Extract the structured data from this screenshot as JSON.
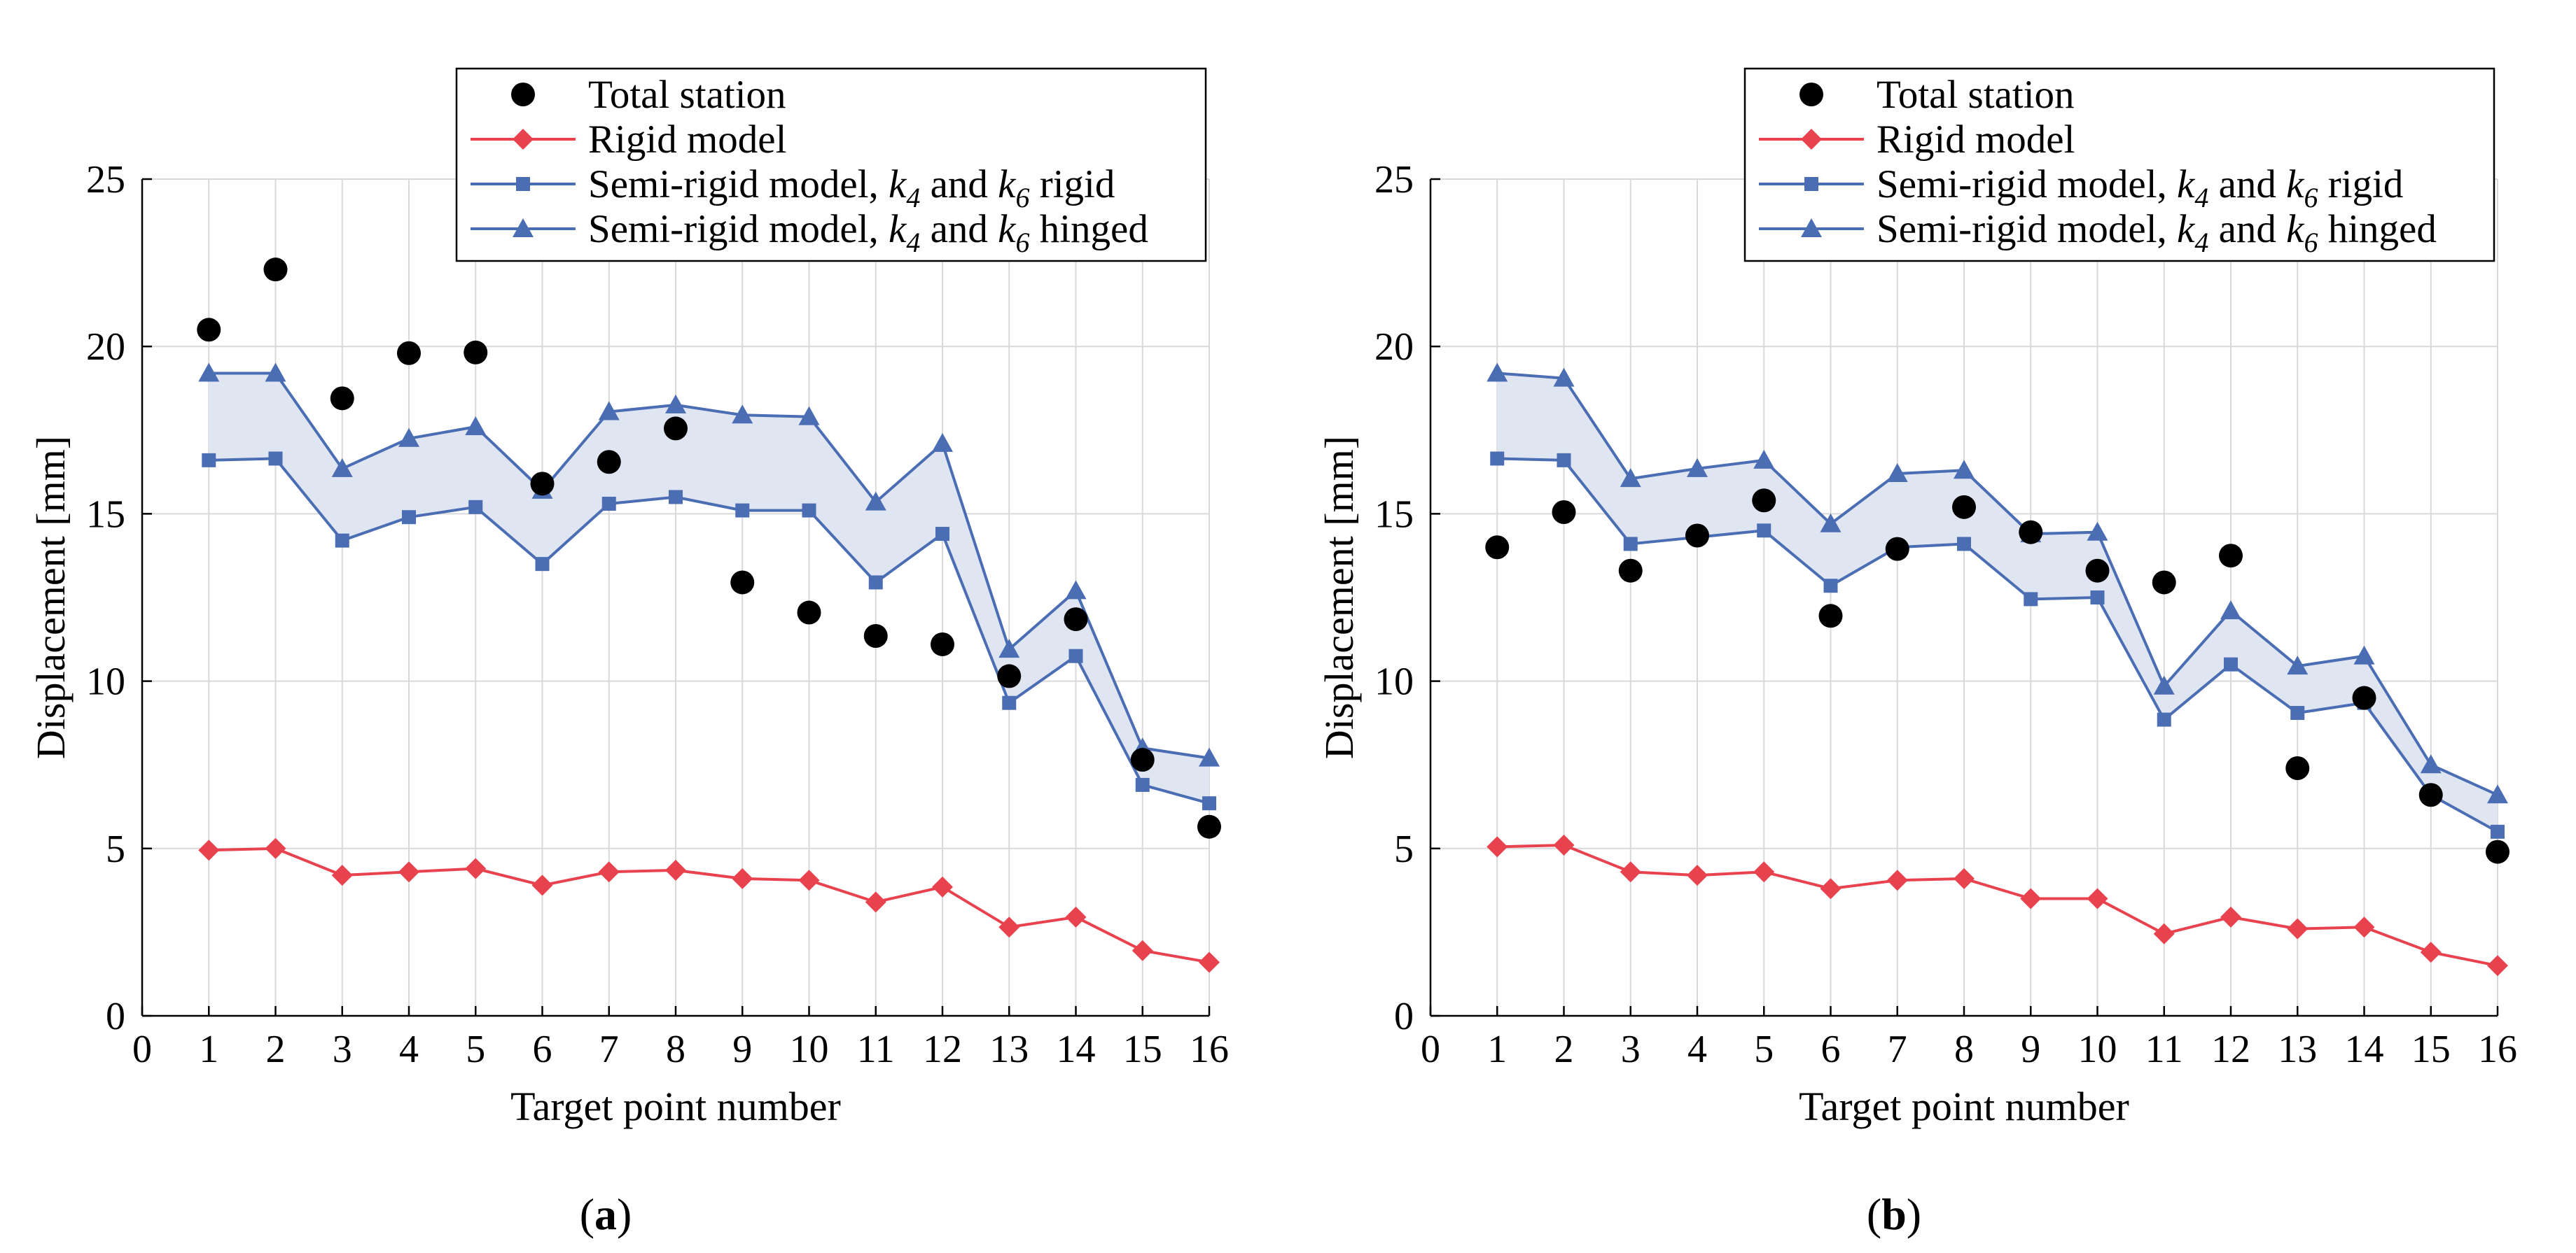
{
  "chart_data": [
    {
      "type": "line",
      "panel_label": "a",
      "xlabel": "Target point number",
      "ylabel": "Displacement [mm]",
      "xlim": [
        0,
        16
      ],
      "ylim": [
        0,
        25
      ],
      "xticks": [
        0,
        1,
        2,
        3,
        4,
        5,
        6,
        7,
        8,
        9,
        10,
        11,
        12,
        13,
        14,
        15,
        16
      ],
      "yticks": [
        0,
        5,
        10,
        15,
        20,
        25
      ],
      "grid": true,
      "legend_position": "top-right",
      "legend": [
        {
          "text": "Total station",
          "parts": [
            "Total station"
          ]
        },
        {
          "text": "Rigid model",
          "parts": [
            "Rigid model"
          ]
        },
        {
          "text": "Semi-rigid model, k4 and k6 rigid",
          "parts": [
            "Semi-rigid model, ",
            "k",
            "4",
            " and ",
            "k",
            "6",
            " rigid"
          ]
        },
        {
          "text": "Semi-rigid model, k4 and k6 hinged",
          "parts": [
            "Semi-rigid model, ",
            "k",
            "4",
            " and ",
            "k",
            "6",
            " hinged"
          ]
        }
      ],
      "x": [
        1,
        2,
        3,
        4,
        5,
        6,
        7,
        8,
        9,
        10,
        11,
        12,
        13,
        14,
        15,
        16
      ],
      "series": [
        {
          "name": "Total station",
          "marker": "circle",
          "line": false,
          "color": "#000000",
          "values": [
            20.5,
            22.3,
            18.45,
            19.8,
            19.82,
            15.9,
            16.55,
            17.55,
            12.95,
            12.05,
            11.35,
            11.1,
            10.15,
            11.85,
            7.65,
            5.65
          ]
        },
        {
          "name": "Rigid model",
          "marker": "diamond",
          "line": true,
          "color": "#e8424f",
          "values": [
            4.95,
            5.0,
            4.2,
            4.3,
            4.4,
            3.9,
            4.3,
            4.35,
            4.1,
            4.05,
            3.4,
            3.85,
            2.65,
            2.95,
            1.95,
            1.6
          ]
        },
        {
          "name": "Semi-rigid model, k4 and k6 rigid",
          "marker": "square",
          "line": true,
          "color": "#4a6db3",
          "values": [
            16.6,
            16.65,
            14.2,
            14.9,
            15.2,
            13.5,
            15.3,
            15.5,
            15.1,
            15.1,
            12.95,
            14.4,
            9.35,
            10.75,
            6.9,
            6.35
          ]
        },
        {
          "name": "Semi-rigid model, k4 and k6 hinged",
          "marker": "triangle",
          "line": true,
          "color": "#4a6db3",
          "values": [
            19.2,
            19.2,
            16.35,
            17.25,
            17.6,
            15.7,
            18.05,
            18.25,
            17.95,
            17.9,
            15.35,
            17.1,
            10.95,
            12.7,
            8.0,
            7.7
          ]
        }
      ]
    },
    {
      "type": "line",
      "panel_label": "b",
      "xlabel": "Target point number",
      "ylabel": "Displacement [mm]",
      "xlim": [
        0,
        16
      ],
      "ylim": [
        0,
        25
      ],
      "xticks": [
        0,
        1,
        2,
        3,
        4,
        5,
        6,
        7,
        8,
        9,
        10,
        11,
        12,
        13,
        14,
        15,
        16
      ],
      "yticks": [
        0,
        5,
        10,
        15,
        20,
        25
      ],
      "grid": true,
      "legend_position": "top-right",
      "legend": [
        {
          "text": "Total station",
          "parts": [
            "Total station"
          ]
        },
        {
          "text": "Rigid model",
          "parts": [
            "Rigid model"
          ]
        },
        {
          "text": "Semi-rigid model, k4 and k6 rigid",
          "parts": [
            "Semi-rigid model, ",
            "k",
            "4",
            " and ",
            "k",
            "6",
            " rigid"
          ]
        },
        {
          "text": "Semi-rigid model, k4 and k6 hinged",
          "parts": [
            "Semi-rigid model, ",
            "k",
            "4",
            " and ",
            "k",
            "6",
            " hinged"
          ]
        }
      ],
      "x": [
        1,
        2,
        3,
        4,
        5,
        6,
        7,
        8,
        9,
        10,
        11,
        12,
        13,
        14,
        15,
        16
      ],
      "series": [
        {
          "name": "Total station",
          "marker": "circle",
          "line": false,
          "color": "#000000",
          "values": [
            14.0,
            15.05,
            13.3,
            14.35,
            15.4,
            11.95,
            13.95,
            15.2,
            14.45,
            13.3,
            12.95,
            13.75,
            7.4,
            9.5,
            6.6,
            4.9
          ]
        },
        {
          "name": "Rigid model",
          "marker": "diamond",
          "line": true,
          "color": "#e8424f",
          "values": [
            5.05,
            5.1,
            4.3,
            4.2,
            4.3,
            3.8,
            4.05,
            4.1,
            3.5,
            3.5,
            2.45,
            2.95,
            2.6,
            2.65,
            1.9,
            1.5
          ]
        },
        {
          "name": "Semi-rigid model, k4 and k6 rigid",
          "marker": "square",
          "line": true,
          "color": "#4a6db3",
          "values": [
            16.65,
            16.6,
            14.1,
            14.3,
            14.5,
            12.85,
            14.0,
            14.1,
            12.45,
            12.5,
            8.85,
            10.5,
            9.05,
            9.35,
            6.6,
            5.5
          ]
        },
        {
          "name": "Semi-rigid model, k4 and k6 hinged",
          "marker": "triangle",
          "line": true,
          "color": "#4a6db3",
          "values": [
            19.2,
            19.05,
            16.05,
            16.35,
            16.6,
            14.7,
            16.2,
            16.3,
            14.4,
            14.45,
            9.85,
            12.1,
            10.45,
            10.75,
            7.5,
            6.6
          ]
        }
      ]
    }
  ],
  "colors": {
    "band_fill": "#dfe5f1",
    "grid": "#d9d9d9"
  }
}
